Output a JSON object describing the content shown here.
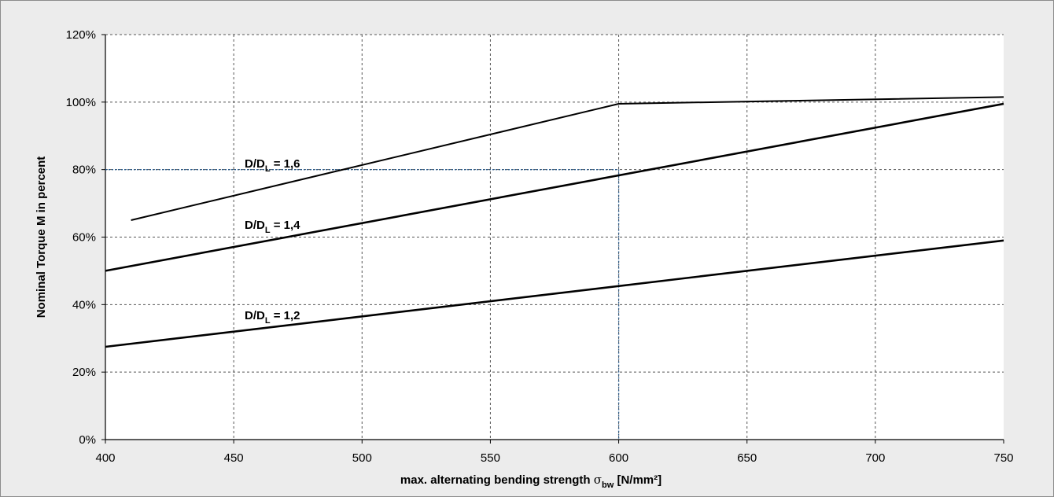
{
  "chart_data": {
    "type": "line",
    "xlabel_text": "max. alternating bending strength",
    "xlabel_symbol": "σ",
    "xlabel_symbol_sub": "bw",
    "xlabel_unit": "[N/mm²]",
    "ylabel": "Nominal Torque M in percent",
    "xlim": [
      400,
      750
    ],
    "ylim": [
      0,
      120
    ],
    "x_ticks": [
      "400",
      "450",
      "500",
      "550",
      "600",
      "650",
      "700",
      "750"
    ],
    "y_ticks": [
      "0%",
      "20%",
      "40%",
      "60%",
      "80%",
      "100%",
      "120%"
    ],
    "grid": true,
    "series": [
      {
        "name": "D/DL = 1,6",
        "label_main": "D/D",
        "label_sub": "L",
        "label_tail": " = 1,6",
        "x": [
          410,
          600,
          750
        ],
        "y": [
          65,
          99.5,
          101.5
        ]
      },
      {
        "name": "D/DL = 1,4",
        "label_main": "D/D",
        "label_sub": "L",
        "label_tail": " = 1,4",
        "x": [
          400,
          750
        ],
        "y": [
          50,
          99.5
        ]
      },
      {
        "name": "D/DL = 1,2",
        "label_main": "D/D",
        "label_sub": "L",
        "label_tail": " = 1,2",
        "x": [
          400,
          750
        ],
        "y": [
          27.5,
          59
        ]
      }
    ],
    "reference_lines": {
      "horizontal_y": 80,
      "vertical_x": 600,
      "color": "#2a5d8f"
    },
    "line_color": "#000000",
    "grid_color": "#555555",
    "background_color": "#ececec"
  }
}
